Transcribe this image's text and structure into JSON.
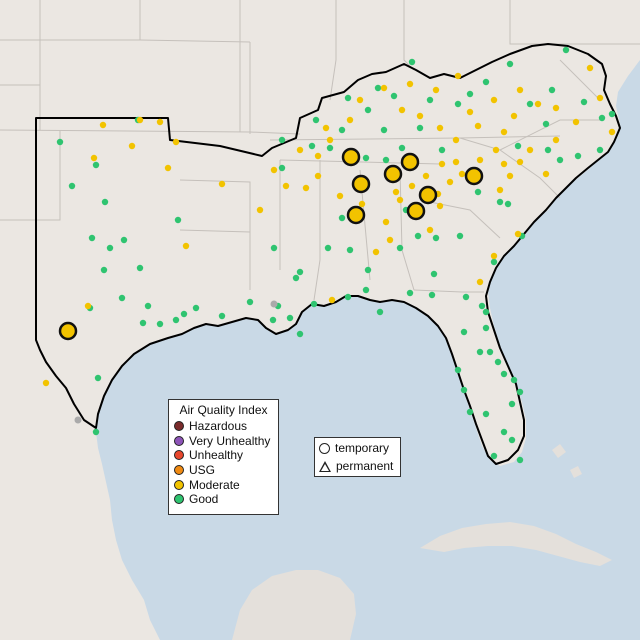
{
  "colors": {
    "water": "#c9d9e6",
    "land": "#ebe7e2",
    "land_far": "#e4e0db",
    "state_line": "#c5c0bb",
    "region_outline": "#000000",
    "good": "#2fc470",
    "moderate": "#f2c300",
    "usg": "#f08a12",
    "unhealthy": "#e8472d",
    "very_unhealthy": "#8d54b8",
    "hazardous": "#7a2b2b",
    "temp_marker": "#aaaaaa"
  },
  "legend": {
    "title": "Air Quality Index",
    "items": [
      {
        "label": "Hazardous",
        "color": "#7a2b2b"
      },
      {
        "label": "Very Unhealthy",
        "color": "#8d54b8"
      },
      {
        "label": "Unhealthy",
        "color": "#e8472d"
      },
      {
        "label": "USG",
        "color": "#f08a12"
      },
      {
        "label": "Moderate",
        "color": "#f2c300"
      },
      {
        "label": "Good",
        "color": "#2fc470"
      }
    ]
  },
  "type_legend": {
    "temporary": "temporary",
    "permanent": "permanent"
  },
  "large_markers": [
    [
      351,
      157
    ],
    [
      361,
      184
    ],
    [
      393,
      174
    ],
    [
      410,
      162
    ],
    [
      428,
      195
    ],
    [
      416,
      211
    ],
    [
      356,
      215
    ],
    [
      474,
      176
    ],
    [
      68,
      331
    ]
  ],
  "good_points": [
    [
      60,
      142
    ],
    [
      96,
      165
    ],
    [
      72,
      186
    ],
    [
      105,
      202
    ],
    [
      92,
      238
    ],
    [
      110,
      248
    ],
    [
      124,
      240
    ],
    [
      104,
      270
    ],
    [
      122,
      298
    ],
    [
      90,
      308
    ],
    [
      140,
      268
    ],
    [
      178,
      220
    ],
    [
      148,
      306
    ],
    [
      143,
      323
    ],
    [
      160,
      324
    ],
    [
      176,
      320
    ],
    [
      184,
      314
    ],
    [
      196,
      308
    ],
    [
      222,
      316
    ],
    [
      250,
      302
    ],
    [
      273,
      320
    ],
    [
      290,
      318
    ],
    [
      278,
      306
    ],
    [
      314,
      304
    ],
    [
      300,
      334
    ],
    [
      296,
      278
    ],
    [
      274,
      248
    ],
    [
      328,
      248
    ],
    [
      342,
      218
    ],
    [
      356,
      220
    ],
    [
      348,
      297
    ],
    [
      366,
      290
    ],
    [
      380,
      312
    ],
    [
      400,
      248
    ],
    [
      406,
      210
    ],
    [
      418,
      236
    ],
    [
      436,
      238
    ],
    [
      434,
      274
    ],
    [
      410,
      293
    ],
    [
      432,
      295
    ],
    [
      466,
      297
    ],
    [
      482,
      306
    ],
    [
      486,
      328
    ],
    [
      464,
      332
    ],
    [
      490,
      352
    ],
    [
      458,
      370
    ],
    [
      464,
      390
    ],
    [
      470,
      412
    ],
    [
      486,
      414
    ],
    [
      512,
      404
    ],
    [
      520,
      392
    ],
    [
      514,
      380
    ],
    [
      504,
      374
    ],
    [
      498,
      362
    ],
    [
      504,
      432
    ],
    [
      512,
      440
    ],
    [
      520,
      460
    ],
    [
      494,
      456
    ],
    [
      480,
      352
    ],
    [
      486,
      312
    ],
    [
      494,
      262
    ],
    [
      522,
      236
    ],
    [
      508,
      204
    ],
    [
      500,
      202
    ],
    [
      478,
      192
    ],
    [
      460,
      236
    ],
    [
      546,
      124
    ],
    [
      518,
      146
    ],
    [
      548,
      150
    ],
    [
      560,
      160
    ],
    [
      578,
      156
    ],
    [
      600,
      150
    ],
    [
      602,
      118
    ],
    [
      612,
      114
    ],
    [
      584,
      102
    ],
    [
      552,
      90
    ],
    [
      566,
      50
    ],
    [
      510,
      64
    ],
    [
      486,
      82
    ],
    [
      458,
      104
    ],
    [
      430,
      100
    ],
    [
      412,
      62
    ],
    [
      378,
      88
    ],
    [
      348,
      98
    ],
    [
      316,
      120
    ],
    [
      342,
      130
    ],
    [
      368,
      110
    ],
    [
      384,
      130
    ],
    [
      420,
      128
    ],
    [
      394,
      96
    ],
    [
      402,
      148
    ],
    [
      442,
      150
    ],
    [
      282,
      140
    ],
    [
      282,
      168
    ],
    [
      312,
      146
    ],
    [
      330,
      148
    ],
    [
      366,
      158
    ],
    [
      386,
      160
    ],
    [
      470,
      94
    ],
    [
      530,
      104
    ],
    [
      350,
      250
    ],
    [
      300,
      272
    ],
    [
      368,
      270
    ],
    [
      98,
      378
    ],
    [
      96,
      432
    ],
    [
      138,
      120
    ]
  ],
  "moderate_points": [
    [
      103,
      125
    ],
    [
      140,
      120
    ],
    [
      160,
      122
    ],
    [
      132,
      146
    ],
    [
      176,
      142
    ],
    [
      168,
      168
    ],
    [
      94,
      158
    ],
    [
      222,
      184
    ],
    [
      186,
      246
    ],
    [
      260,
      210
    ],
    [
      274,
      170
    ],
    [
      300,
      150
    ],
    [
      318,
      156
    ],
    [
      330,
      140
    ],
    [
      318,
      176
    ],
    [
      340,
      196
    ],
    [
      362,
      204
    ],
    [
      386,
      222
    ],
    [
      400,
      200
    ],
    [
      412,
      186
    ],
    [
      426,
      176
    ],
    [
      442,
      164
    ],
    [
      440,
      206
    ],
    [
      430,
      230
    ],
    [
      450,
      182
    ],
    [
      462,
      174
    ],
    [
      480,
      160
    ],
    [
      496,
      150
    ],
    [
      504,
      164
    ],
    [
      510,
      176
    ],
    [
      500,
      190
    ],
    [
      520,
      162
    ],
    [
      546,
      174
    ],
    [
      556,
      140
    ],
    [
      530,
      150
    ],
    [
      538,
      104
    ],
    [
      556,
      108
    ],
    [
      590,
      68
    ],
    [
      458,
      76
    ],
    [
      436,
      90
    ],
    [
      410,
      84
    ],
    [
      384,
      88
    ],
    [
      420,
      116
    ],
    [
      440,
      128
    ],
    [
      456,
      140
    ],
    [
      478,
      126
    ],
    [
      504,
      132
    ],
    [
      514,
      116
    ],
    [
      520,
      90
    ],
    [
      494,
      100
    ],
    [
      470,
      112
    ],
    [
      402,
      110
    ],
    [
      360,
      100
    ],
    [
      350,
      120
    ],
    [
      326,
      128
    ],
    [
      306,
      188
    ],
    [
      396,
      192
    ],
    [
      390,
      240
    ],
    [
      376,
      252
    ],
    [
      332,
      300
    ],
    [
      438,
      194
    ],
    [
      494,
      256
    ],
    [
      480,
      282
    ],
    [
      88,
      306
    ],
    [
      46,
      383
    ],
    [
      518,
      234
    ],
    [
      576,
      122
    ],
    [
      600,
      98
    ],
    [
      612,
      132
    ],
    [
      456,
      162
    ],
    [
      286,
      186
    ]
  ],
  "gray_points": [
    [
      274,
      304
    ],
    [
      78,
      420
    ]
  ]
}
